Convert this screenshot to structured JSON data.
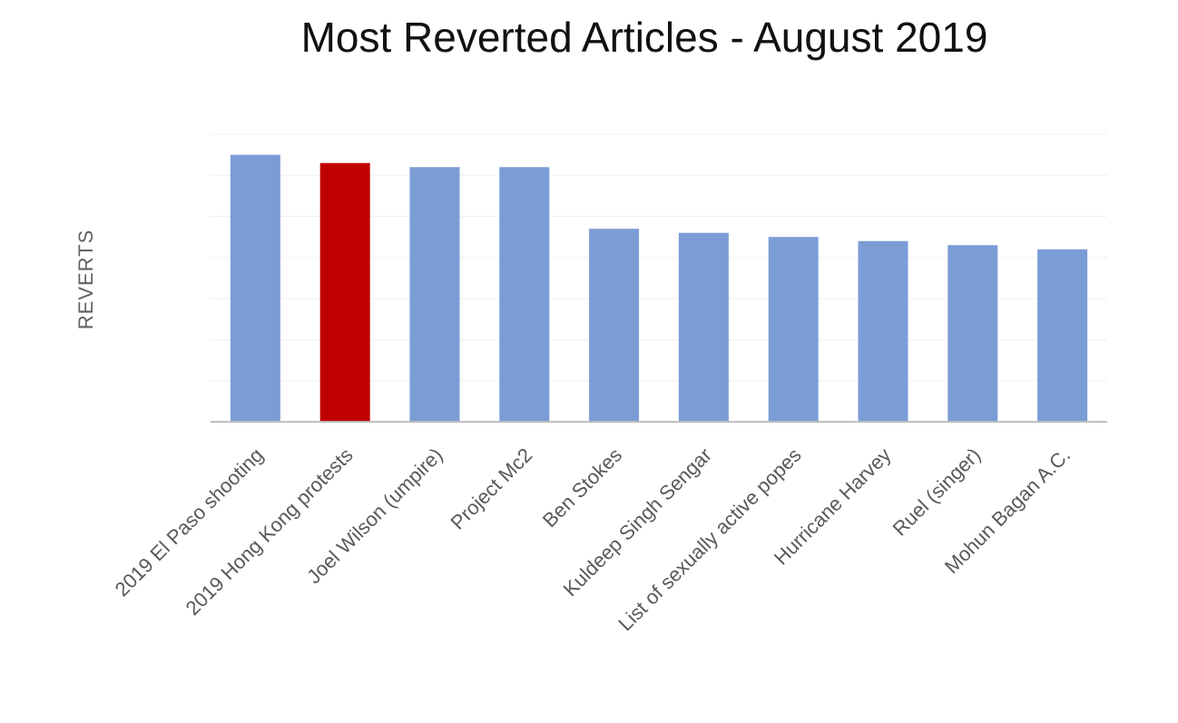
{
  "chart_data": {
    "type": "bar",
    "title": "Most Reverted Articles - August 2019",
    "xlabel": "",
    "ylabel": "REVERTS",
    "categories": [
      "2019 El Paso shooting",
      "2019 Hong Kong protests",
      "Joel Wilson (umpire)",
      "Project Mc2",
      "Ben Stokes",
      "Kuldeep Singh Sengar",
      "List of sexually active popes",
      "Hurricane Harvey",
      "Ruel (singer)",
      "Mohun Bagan A.C."
    ],
    "values": [
      6.5,
      6.3,
      6.2,
      6.2,
      4.7,
      4.6,
      4.5,
      4.4,
      4.3,
      4.2
    ],
    "highlight_index": 1,
    "ylim": [
      0,
      7
    ],
    "y_ticks_visible": false,
    "grid": true,
    "colors": {
      "bar": "#7b9dd6",
      "highlight": "#c00000",
      "grid": "#efefef",
      "axis": "#bfbfbf"
    }
  }
}
